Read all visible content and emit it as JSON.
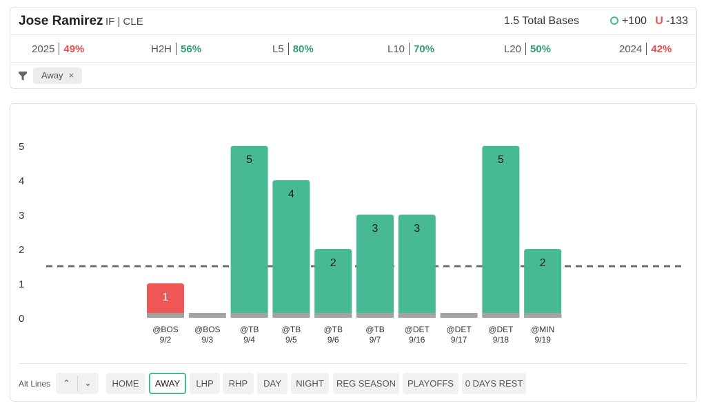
{
  "header": {
    "player_name": "Jose Ramirez",
    "player_meta": "IF | CLE",
    "market": "1.5 Total Bases",
    "over_odds": "+100",
    "under_label": "U",
    "under_odds": "-133",
    "colors": {
      "over": "#45b993",
      "under": "#ef5353"
    }
  },
  "stats": [
    {
      "label": "2025",
      "value": "49%",
      "tone": "red"
    },
    {
      "label": "H2H",
      "value": "56%",
      "tone": "green"
    },
    {
      "label": "L5",
      "value": "80%",
      "tone": "green"
    },
    {
      "label": "L10",
      "value": "70%",
      "tone": "green"
    },
    {
      "label": "L20",
      "value": "50%",
      "tone": "green"
    },
    {
      "label": "2024",
      "value": "42%",
      "tone": "red"
    }
  ],
  "filters": {
    "icon": "funnel-icon",
    "chips": [
      {
        "label": "Away",
        "remove": "×"
      }
    ]
  },
  "chart_data": {
    "type": "bar",
    "categories": [
      "@BOS 9/2",
      "@BOS 9/3",
      "@TB 9/4",
      "@TB 9/5",
      "@TB 9/6",
      "@TB 9/7",
      "@DET 9/16",
      "@DET 9/17",
      "@DET 9/18",
      "@MIN 9/19"
    ],
    "opponents": [
      "@BOS",
      "@BOS",
      "@TB",
      "@TB",
      "@TB",
      "@TB",
      "@DET",
      "@DET",
      "@DET",
      "@MIN"
    ],
    "dates": [
      "9/2",
      "9/3",
      "9/4",
      "9/5",
      "9/6",
      "9/7",
      "9/16",
      "9/17",
      "9/18",
      "9/19"
    ],
    "values": [
      1,
      0,
      5,
      4,
      2,
      3,
      3,
      0,
      5,
      2
    ],
    "line": 1.5,
    "yticks": [
      0,
      1,
      2,
      3,
      4,
      5
    ],
    "ylim": [
      0,
      5
    ],
    "title": "",
    "xlabel": "",
    "ylabel": "",
    "grid": false,
    "colors": {
      "over": "#47b994",
      "under": "#ef5656",
      "zero": "#a3a3a3",
      "line": "#6d6d6d"
    }
  },
  "bottom": {
    "alt_lines_label": "Alt Lines",
    "up_glyph": "⌃",
    "down_glyph": "⌄",
    "buttons": [
      {
        "label": "HOME",
        "active": false
      },
      {
        "label": "AWAY",
        "active": true
      },
      {
        "label": "LHP",
        "active": false
      },
      {
        "label": "RHP",
        "active": false
      },
      {
        "label": "DAY",
        "active": false
      },
      {
        "label": "NIGHT",
        "active": false
      },
      {
        "label": "REG SEASON",
        "active": false
      },
      {
        "label": "PLAYOFFS",
        "active": false
      },
      {
        "label": "0 DAYS REST",
        "active": false
      }
    ]
  }
}
